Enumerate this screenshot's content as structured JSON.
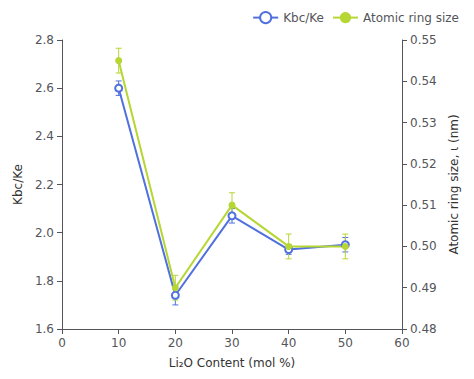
{
  "chart_data": {
    "type": "line",
    "xlabel": "Li₂O Content (mol %)",
    "ylabel": "Kbc/Ke",
    "y2label": "Atomic ring size, ι (nm)",
    "x": [
      10,
      20,
      30,
      40,
      50
    ],
    "xlim": [
      0,
      60
    ],
    "xticks": [
      0,
      10,
      20,
      30,
      40,
      50,
      60
    ],
    "ylim": [
      1.6,
      2.8
    ],
    "yticks": [
      1.6,
      1.8,
      {
        "value": 2.0,
        "label": "2.0"
      },
      2.2,
      2.4,
      2.6,
      2.8
    ],
    "y2lim": [
      0.48,
      0.55
    ],
    "y2ticks": [
      0.48,
      0.49,
      {
        "value": 0.5,
        "label": "0.50"
      },
      0.51,
      0.52,
      0.53,
      0.54,
      0.55
    ],
    "grid": false,
    "legend": "upper right",
    "series": [
      {
        "name": "Kbc/Ke",
        "values": [
          2.6,
          1.74,
          2.07,
          1.93,
          1.95
        ],
        "errors": [
          0.03,
          0.04,
          0.03,
          0.02,
          0.03
        ],
        "marker": "emptyCircle"
      },
      {
        "name": "Atomic ring size",
        "values": [
          0.545,
          0.49,
          0.51,
          0.5,
          0.5
        ],
        "errors": [
          0.003,
          0.003,
          0.003,
          0.003,
          0.003
        ],
        "marker": "circle",
        "axis": "y2"
      }
    ]
  }
}
